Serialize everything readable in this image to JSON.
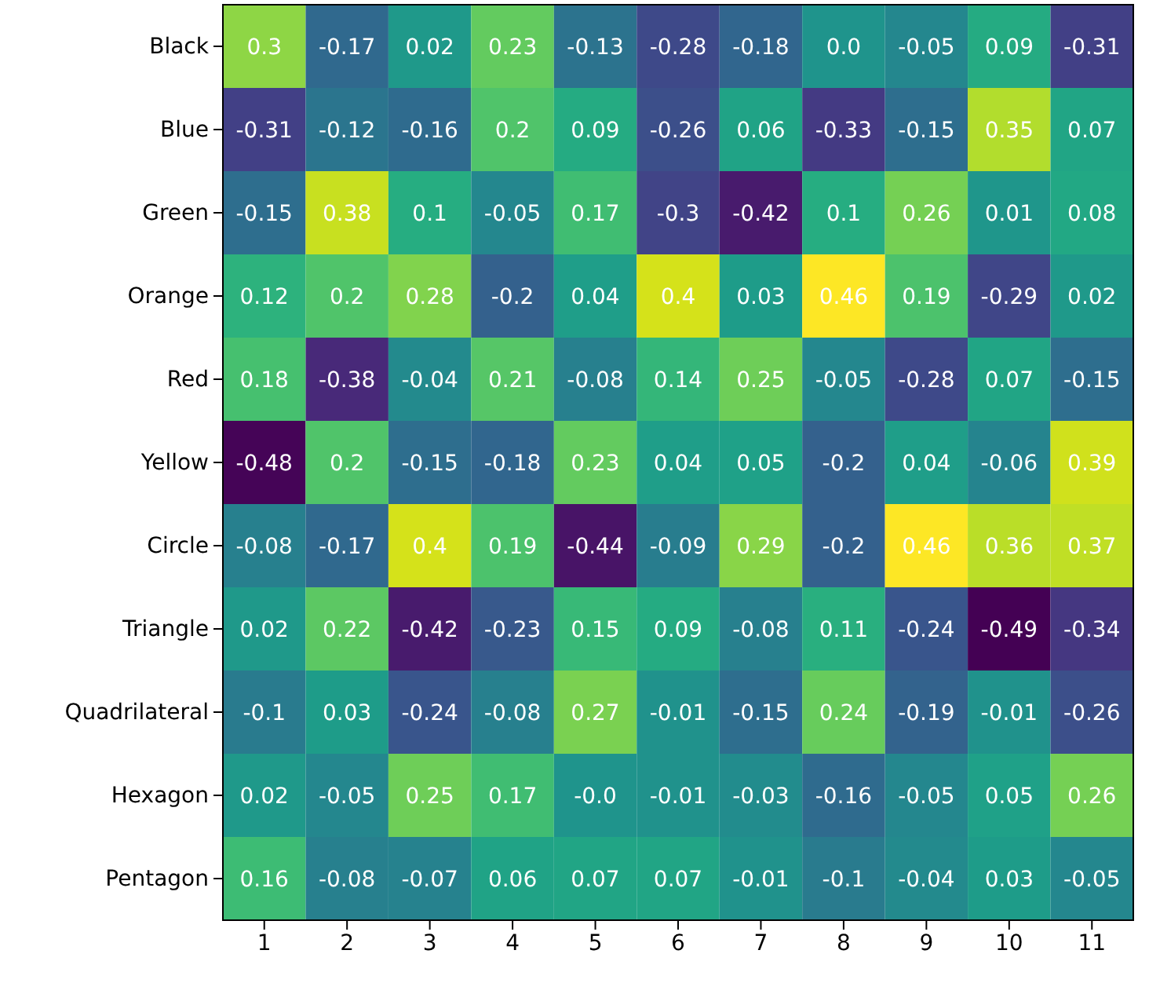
{
  "chart_data": {
    "type": "heatmap",
    "categories": [
      "1",
      "2",
      "3",
      "4",
      "5",
      "6",
      "7",
      "8",
      "9",
      "10",
      "11"
    ],
    "y_categories": [
      "Black",
      "Blue",
      "Green",
      "Orange",
      "Red",
      "Yellow",
      "Circle",
      "Triangle",
      "Quadrilateral",
      "Hexagon",
      "Pentagon"
    ],
    "cells": [
      [
        0.3,
        -0.17,
        0.02,
        0.23,
        -0.13,
        -0.28,
        -0.18,
        0.0,
        -0.05,
        0.09,
        -0.31
      ],
      [
        -0.31,
        -0.12,
        -0.16,
        0.2,
        0.09,
        -0.26,
        0.06,
        -0.33,
        -0.15,
        0.35,
        0.07
      ],
      [
        -0.15,
        0.38,
        0.1,
        -0.05,
        0.17,
        -0.3,
        -0.42,
        0.1,
        0.26,
        0.01,
        0.08
      ],
      [
        0.12,
        0.2,
        0.28,
        -0.2,
        0.04,
        0.4,
        0.03,
        0.46,
        0.19,
        -0.29,
        0.02
      ],
      [
        0.18,
        -0.38,
        -0.04,
        0.21,
        -0.08,
        0.14,
        0.25,
        -0.05,
        -0.28,
        0.07,
        -0.15
      ],
      [
        -0.48,
        0.2,
        -0.15,
        -0.18,
        0.23,
        0.04,
        0.05,
        -0.2,
        0.04,
        -0.06,
        0.39
      ],
      [
        -0.08,
        -0.17,
        0.4,
        0.19,
        -0.44,
        -0.09,
        0.29,
        -0.2,
        0.46,
        0.36,
        0.37
      ],
      [
        0.02,
        0.22,
        -0.42,
        -0.23,
        0.15,
        0.09,
        -0.08,
        0.11,
        -0.24,
        -0.49,
        -0.34
      ],
      [
        -0.1,
        0.03,
        -0.24,
        -0.08,
        0.27,
        -0.01,
        -0.15,
        0.24,
        -0.19,
        -0.01,
        -0.26
      ],
      [
        0.02,
        -0.05,
        0.25,
        0.17,
        0.0,
        -0.01,
        -0.03,
        -0.16,
        -0.05,
        0.05,
        0.26
      ],
      [
        0.16,
        -0.08,
        -0.07,
        0.06,
        0.07,
        0.07,
        -0.01,
        -0.1,
        -0.04,
        0.03,
        -0.05
      ]
    ],
    "cell_labels": [
      [
        "0.3",
        "-0.17",
        "0.02",
        "0.23",
        "-0.13",
        "-0.28",
        "-0.18",
        "0.0",
        "-0.05",
        "0.09",
        "-0.31"
      ],
      [
        "-0.31",
        "-0.12",
        "-0.16",
        "0.2",
        "0.09",
        "-0.26",
        "0.06",
        "-0.33",
        "-0.15",
        "0.35",
        "0.07"
      ],
      [
        "-0.15",
        "0.38",
        "0.1",
        "-0.05",
        "0.17",
        "-0.3",
        "-0.42",
        "0.1",
        "0.26",
        "0.01",
        "0.08"
      ],
      [
        "0.12",
        "0.2",
        "0.28",
        "-0.2",
        "0.04",
        "0.4",
        "0.03",
        "0.46",
        "0.19",
        "-0.29",
        "0.02"
      ],
      [
        "0.18",
        "-0.38",
        "-0.04",
        "0.21",
        "-0.08",
        "0.14",
        "0.25",
        "-0.05",
        "-0.28",
        "0.07",
        "-0.15"
      ],
      [
        "-0.48",
        "0.2",
        "-0.15",
        "-0.18",
        "0.23",
        "0.04",
        "0.05",
        "-0.2",
        "0.04",
        "-0.06",
        "0.39"
      ],
      [
        "-0.08",
        "-0.17",
        "0.4",
        "0.19",
        "-0.44",
        "-0.09",
        "0.29",
        "-0.2",
        "0.46",
        "0.36",
        "0.37"
      ],
      [
        "0.02",
        "0.22",
        "-0.42",
        "-0.23",
        "0.15",
        "0.09",
        "-0.08",
        "0.11",
        "-0.24",
        "-0.49",
        "-0.34"
      ],
      [
        "-0.1",
        "0.03",
        "-0.24",
        "-0.08",
        "0.27",
        "-0.01",
        "-0.15",
        "0.24",
        "-0.19",
        "-0.01",
        "-0.26"
      ],
      [
        "0.02",
        "-0.05",
        "0.25",
        "0.17",
        "-0.0",
        "-0.01",
        "-0.03",
        "-0.16",
        "-0.05",
        "0.05",
        "0.26"
      ],
      [
        "0.16",
        "-0.08",
        "-0.07",
        "0.06",
        "0.07",
        "0.07",
        "-0.01",
        "-0.1",
        "-0.04",
        "0.03",
        "-0.05"
      ]
    ]
  }
}
